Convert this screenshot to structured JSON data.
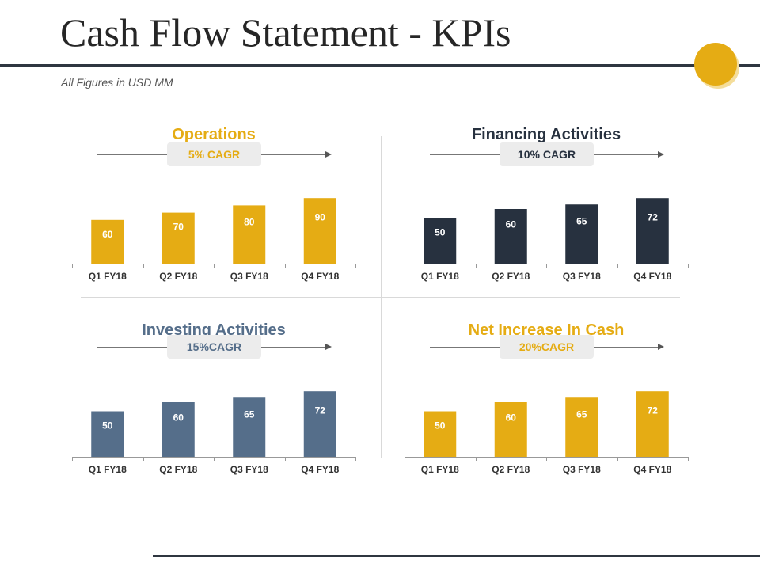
{
  "slide": {
    "title": "Cash Flow Statement - KPIs",
    "subtitle": "All Figures in USD MM"
  },
  "colors": {
    "accent": "#e5ac14",
    "dark": "#27313f",
    "slate": "#556e8a"
  },
  "chart_data": [
    {
      "type": "bar",
      "title": "Operations",
      "annotation": "5% CAGR",
      "color": "#e5ac14",
      "categories": [
        "Q1 FY18",
        "Q2 FY18",
        "Q3 FY18",
        "Q4 FY18"
      ],
      "values": [
        60,
        70,
        80,
        90
      ],
      "ylim": [
        0,
        100
      ]
    },
    {
      "type": "bar",
      "title": "Financing Activities",
      "annotation": "10% CAGR",
      "color": "#27313f",
      "categories": [
        "Q1 FY18",
        "Q2 FY18",
        "Q3 FY18",
        "Q4 FY18"
      ],
      "values": [
        50,
        60,
        65,
        72
      ],
      "ylim": [
        0,
        80
      ]
    },
    {
      "type": "bar",
      "title": "Investing Activities",
      "annotation": "15%CAGR",
      "color": "#556e8a",
      "categories": [
        "Q1 FY18",
        "Q2 FY18",
        "Q3 FY18",
        "Q4 FY18"
      ],
      "values": [
        50,
        60,
        65,
        72
      ],
      "ylim": [
        0,
        80
      ]
    },
    {
      "type": "bar",
      "title": "Net Increase In Cash",
      "annotation": "20%CAGR",
      "color": "#e5ac14",
      "categories": [
        "Q1 FY18",
        "Q2 FY18",
        "Q3 FY18",
        "Q4 FY18"
      ],
      "values": [
        50,
        60,
        65,
        72
      ],
      "ylim": [
        0,
        80
      ]
    }
  ]
}
